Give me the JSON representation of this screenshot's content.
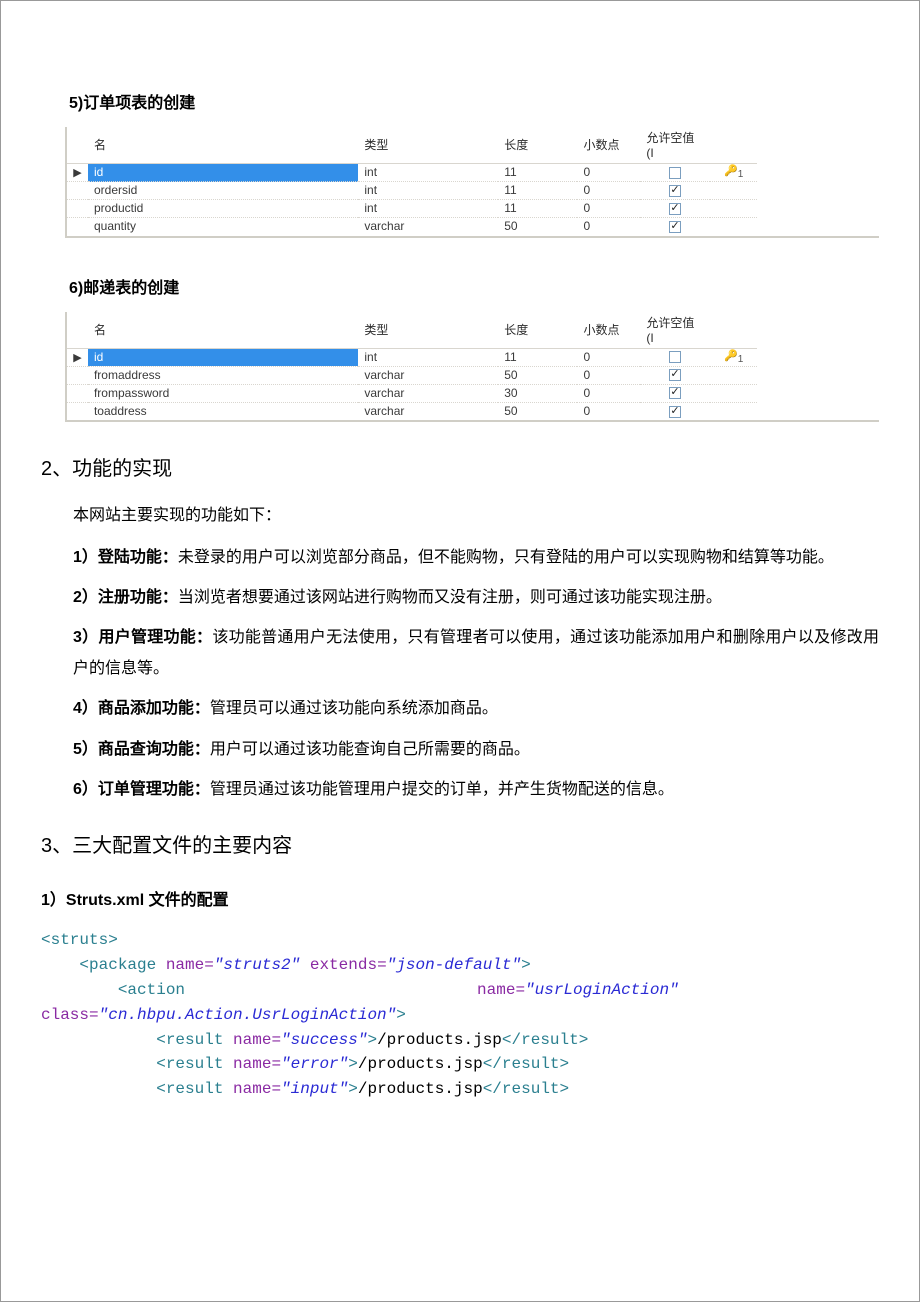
{
  "section5": {
    "title": "5)订单项表的创建"
  },
  "section6": {
    "title": "6)邮递表的创建"
  },
  "tableHeaders": {
    "name": "名",
    "type": "类型",
    "length": "长度",
    "decimals": "小数点",
    "allowNull": "允许空值 (I"
  },
  "table5": {
    "rows": [
      {
        "name": "id",
        "type": "int",
        "len": "11",
        "dec": "0",
        "null": false,
        "pk": true,
        "sel": true
      },
      {
        "name": "ordersid",
        "type": "int",
        "len": "11",
        "dec": "0",
        "null": true,
        "pk": false,
        "sel": false
      },
      {
        "name": "productid",
        "type": "int",
        "len": "11",
        "dec": "0",
        "null": true,
        "pk": false,
        "sel": false
      },
      {
        "name": "quantity",
        "type": "varchar",
        "len": "50",
        "dec": "0",
        "null": true,
        "pk": false,
        "sel": false
      }
    ]
  },
  "table6": {
    "rows": [
      {
        "name": "id",
        "type": "int",
        "len": "11",
        "dec": "0",
        "null": false,
        "pk": true,
        "sel": true
      },
      {
        "name": "fromaddress",
        "type": "varchar",
        "len": "50",
        "dec": "0",
        "null": true,
        "pk": false,
        "sel": false
      },
      {
        "name": "frompassword",
        "type": "varchar",
        "len": "30",
        "dec": "0",
        "null": true,
        "pk": false,
        "sel": false
      },
      {
        "name": "toaddress",
        "type": "varchar",
        "len": "50",
        "dec": "0",
        "null": true,
        "pk": false,
        "sel": false
      }
    ]
  },
  "h2_functions": "2、功能的实现",
  "intro": "本网站主要实现的功能如下：",
  "features": [
    {
      "num": "1）",
      "title": "登陆功能：",
      "body": "未登录的用户可以浏览部分商品，但不能购物，只有登陆的用户可以实现购物和结算等功能。"
    },
    {
      "num": "2）",
      "title": "注册功能：",
      "body": "当浏览者想要通过该网站进行购物而又没有注册，则可通过该功能实现注册。"
    },
    {
      "num": "3）",
      "title": "用户管理功能：",
      "body": "该功能普通用户无法使用，只有管理者可以使用，通过该功能添加用户和删除用户以及修改用户的信息等。"
    },
    {
      "num": "4）",
      "title": "商品添加功能：",
      "body": "管理员可以通过该功能向系统添加商品。"
    },
    {
      "num": "5）",
      "title": "商品查询功能：",
      "body": "用户可以通过该功能查询自己所需要的商品。"
    },
    {
      "num": "6）",
      "title": "订单管理功能：",
      "body": "管理员通过该功能管理用户提交的订单，并产生货物配送的信息。"
    }
  ],
  "h2_config": "3、三大配置文件的主要内容",
  "h3_struts": "1）Struts.xml 文件的配置",
  "code": {
    "struts_open": "<struts>",
    "pkg_open_a": "    <package",
    "pkg_name_attr": " name=",
    "pkg_name_val": "\"struts2\"",
    "pkg_ext_attr": " extends=",
    "pkg_ext_val": "\"json-default\"",
    "close_tag": ">",
    "action_open_a": "        <action",
    "action_name_attr": "name=",
    "action_name_val": "\"usrLoginAction\"",
    "class_prefix": "class=",
    "class_val": "\"cn.hbpu.Action.UsrLoginAction\"",
    "result_prefix": "            <result",
    "result_name_attr": " name=",
    "r1_val": "\"success\"",
    "r2_val": "\"error\"",
    "r3_val": "\"input\"",
    "result_body": "/products.jsp",
    "result_close": "</result>"
  }
}
